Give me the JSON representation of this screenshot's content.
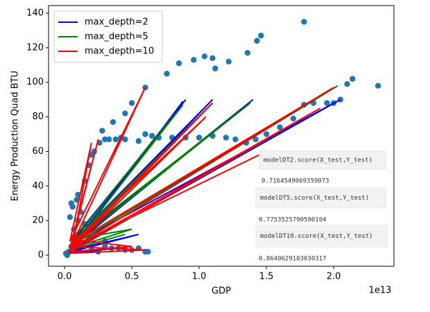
{
  "chart_data": {
    "type": "scatter",
    "x_label": "GDP",
    "y_label": "Energy Production Quad BTU",
    "x_offset_label": "1e13",
    "xlim": [
      -0.119,
      2.448
    ],
    "ylim": [
      -6.4,
      144.4
    ],
    "xticks": [
      {
        "value": 0,
        "label": "0.0"
      },
      0.5,
      {
        "value": 1,
        "label": "1.0"
      },
      1.5,
      {
        "value": 2,
        "label": "2.0"
      }
    ],
    "yticks": [
      0,
      20,
      40,
      60,
      80,
      100,
      120,
      140
    ],
    "scatter": {
      "color": "#1f77b4",
      "x": [
        0.2,
        0.26,
        0.28,
        0.3,
        0.33,
        0.36,
        0.38,
        0.42,
        0.45,
        0.5,
        0.6,
        0.76,
        0.85,
        0.96,
        1.04,
        1.1,
        1.12,
        1.22,
        1.36,
        1.43,
        1.46,
        1.78,
        2.1,
        2.14,
        2.33,
        0.45,
        0.55,
        0.6,
        0.65,
        0.7,
        0.8,
        0.9,
        1.0,
        1.1,
        1.2,
        1.27,
        1.35,
        1.42,
        1.5,
        1.6,
        1.7,
        1.78,
        1.85,
        1.95,
        2.0,
        2.05,
        0.02,
        0.05,
        0.08,
        0.1,
        0.12,
        0.05,
        0.1,
        0.15,
        0.18,
        0.22,
        0.07,
        0.03,
        0.2,
        0.3,
        0.4,
        0.5,
        0.6,
        0.2,
        0.3,
        0.1,
        0.15,
        0.04,
        0.06,
        0.09,
        0.01,
        0.25,
        0.35,
        0.45,
        0.55,
        0.62
      ],
      "y": [
        58,
        65,
        72,
        67,
        67,
        77,
        67,
        68,
        82,
        88,
        97,
        105,
        111,
        113,
        115,
        114,
        108,
        112,
        117,
        124,
        127,
        135,
        99,
        102,
        98,
        67,
        66,
        70,
        69,
        68,
        68,
        68,
        68,
        69,
        68,
        67,
        65,
        67,
        70,
        74,
        79,
        87,
        88,
        88,
        88,
        90,
        0,
        5,
        10,
        20,
        25,
        30,
        35,
        43,
        52,
        60,
        15,
        2,
        3,
        5,
        4,
        3,
        2,
        10,
        8,
        12,
        18,
        22,
        28,
        32,
        1,
        2,
        4,
        3,
        4,
        2
      ]
    },
    "series": [
      {
        "name": "max_depth=2",
        "color": "#0000ff",
        "type": "line",
        "x": [
          0.05,
          0.9,
          0.06,
          1.1,
          0.04,
          1.4,
          0.05,
          2.05,
          0.06,
          0.55,
          0.05,
          0.5,
          0.03,
          0.88
        ],
        "y": [
          5,
          90,
          8,
          90,
          4,
          90,
          6,
          90,
          3,
          12,
          2,
          5,
          1,
          89
        ]
      },
      {
        "name": "max_depth=5",
        "color": "#008000",
        "type": "line",
        "x": [
          0.05,
          1.1,
          0.06,
          1.38,
          0.04,
          2.03,
          0.05,
          0.5,
          0.06,
          0.88,
          0.04,
          0.45
        ],
        "y": [
          6,
          88,
          8,
          88,
          5,
          98,
          4,
          15,
          9,
          87,
          3,
          12
        ]
      },
      {
        "name": "max_depth=10",
        "color": "#ff0000",
        "type": "line",
        "x": [
          0.05,
          0.6,
          0.04,
          0.2,
          0.06,
          1.1,
          0.05,
          2.0,
          0.06,
          1.05,
          0.04,
          1.9,
          0.05,
          0.5,
          0.06,
          0.25,
          0.03,
          0.6,
          0.05,
          1.5
        ],
        "y": [
          5,
          97,
          8,
          65,
          6,
          88,
          4,
          97,
          7,
          80,
          3,
          85,
          2,
          5,
          9,
          67,
          1,
          3,
          5,
          60
        ]
      }
    ],
    "annotations": [
      {
        "text": "modelDT2.score(X_test,Y_test)",
        "value": "0.7164549069359073"
      },
      {
        "text": "modelDT5.score(X_test,Y_test)",
        "value": "0.7753525790590104"
      },
      {
        "text": "modelDT10.score(X_test,Y_test)",
        "value": "0.8640629103030317"
      }
    ]
  }
}
